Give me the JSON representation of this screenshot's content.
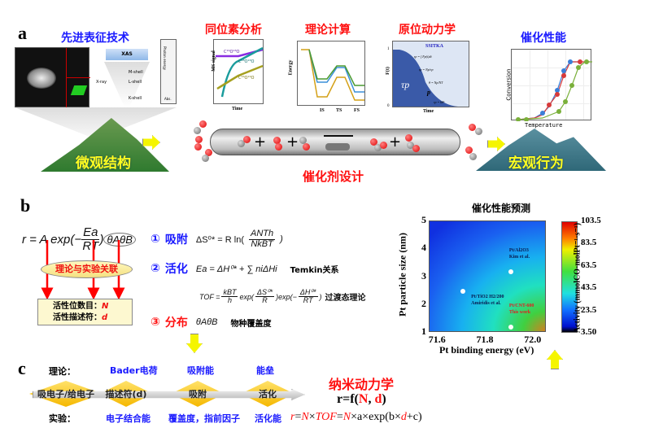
{
  "panel_a": {
    "label": "a",
    "characterization": {
      "title": "先进表征技术",
      "xas_label": "XAS",
      "xray_label": "X-ray",
      "shells": [
        "M-shell",
        "L-shell",
        "K-shell"
      ],
      "abs_label": "Abs.",
      "photon_energy_label": "Photon energy"
    },
    "isotope": {
      "title": "同位素分析",
      "ylabel": "MS signal",
      "xlabel": "Time",
      "series": [
        "C¹⁶O¹⁸O",
        "C¹⁸O¹⁸O",
        "C¹⁶O¹⁶O"
      ],
      "colors": [
        "#8a2be2",
        "#1a9c9c",
        "#a6a020"
      ]
    },
    "theory": {
      "title": "理论计算",
      "ylabel": "Energy",
      "xticks": [
        "IS",
        "TS",
        "FS"
      ],
      "colors": [
        "#d4a017",
        "#3a8fd8",
        "#4a9a30"
      ]
    },
    "kinetics": {
      "title": "原位动力学",
      "plot_title": "SSITKA",
      "ylabel": "F(t)",
      "xlabel": "Time",
      "yticks": [
        "1",
        "0"
      ],
      "tau_label": "τp",
      "p_label": "p",
      "equations": [
        "τp = ∫ Fp(t)dt",
        "τp = Np/rp",
        "θ = Np/NT",
        "rp = kθⁿ"
      ],
      "brackets": [
        "Np",
        "θ",
        "k"
      ]
    },
    "performance": {
      "title": "催化性能",
      "ylabel": "Conversion",
      "xlabel": "Temperature",
      "colors": [
        "#3a7fd8",
        "#d83a3a",
        "#7ab03a"
      ]
    },
    "micro": "微观结构",
    "macro": "宏观行为",
    "design": "催化剂设计"
  },
  "panel_b": {
    "label": "b",
    "rate_eq": {
      "lhs": "r = A exp(−",
      "num": "Ea",
      "den": "RT",
      "rhs": ")",
      "theta": "θAθB"
    },
    "link_label": "理论与实验关联",
    "box": {
      "line1_label": "活性位数目：",
      "line1_var": "N",
      "line2_label": "活性描述符：",
      "line2_var": "d"
    },
    "items": [
      {
        "num": "①",
        "name": "吸附",
        "eq_lhs": "ΔS⁰* = R ln(",
        "eq_num": "ANTh",
        "eq_den": "NkBT",
        "eq_rhs": ")",
        "note": ""
      },
      {
        "num": "②",
        "name": "活化",
        "eq_lhs": "Ea = ΔH⁰* + ∑ niΔHi",
        "note": "Temkin关系"
      },
      {
        "num": "③",
        "name": "分布",
        "eq_lhs": "θAθB",
        "note": "物种覆盖度"
      }
    ],
    "tof": {
      "lhs": "TOF =",
      "f1_num": "kBT",
      "f1_den": "h",
      "mid": "exp(",
      "f2_num": "ΔS⁰*",
      "f2_den": "R",
      "mid2": ")exp(−",
      "f3_num": "ΔH⁰*",
      "f3_den": "RT",
      "end": ")",
      "note": "过渡态理论"
    },
    "colors": {
      "blue": "#1a1aff",
      "red": "#ff1010"
    }
  },
  "chart_data": {
    "type": "heatmap",
    "title": "催化性能预测",
    "xlabel": "Pt binding energy (eV)",
    "ylabel": "Pt particle size (nm)",
    "xlim": [
      71.56,
      72.05
    ],
    "ylim": [
      1,
      5
    ],
    "xticks": [
      "71.6",
      "71.8",
      "72.0"
    ],
    "yticks": [
      "1",
      "2",
      "3",
      "4",
      "5"
    ],
    "colorbar_label": "Activity (mmolCO·molPt⁻¹·s⁻¹)",
    "colorbar_ticks": [
      "103.5",
      "83.5",
      "63.5",
      "43.5",
      "23.5",
      "3.50"
    ],
    "colorbar_range": [
      3.5,
      103.5
    ],
    "points": [
      {
        "x": 71.9,
        "y": 3.18,
        "label1": "Pt/Al2O3",
        "label2": "Kim et al.",
        "color": "#0a1a50"
      },
      {
        "x": 71.7,
        "y": 2.48,
        "label1": "Pt/TiO2 H2/200",
        "label2": "Amiridis  et al.",
        "color": "#0a1a50"
      },
      {
        "x": 71.9,
        "y": 1.2,
        "label1": "Pt/CNT-600",
        "label2": "This work",
        "color": "#e02020"
      }
    ]
  },
  "panel_c": {
    "label": "c",
    "theory_label": "理论：",
    "exp_label": "实验：",
    "theory_items": [
      "Bader电荷",
      "吸附能",
      "能垒"
    ],
    "diamonds": [
      "吸电子/给电子",
      "描述符(d)",
      "吸附",
      "活化"
    ],
    "exp_items": [
      "电子结合能",
      "覆盖度，指前因子",
      "活化能"
    ],
    "nano_title": "纳米动力学",
    "rf": {
      "a": "r=f(",
      "N": "N",
      ",": ", ",
      "d": "d",
      "b": ")"
    },
    "formula": {
      "r": "r",
      "eq1": "=",
      "N1": "N",
      "x1": "×",
      "TOF": "TOF",
      "eq2": "=",
      "N2": "N",
      "mid": "×a×exp(b×",
      "d": "d",
      "end": "+c)"
    }
  }
}
